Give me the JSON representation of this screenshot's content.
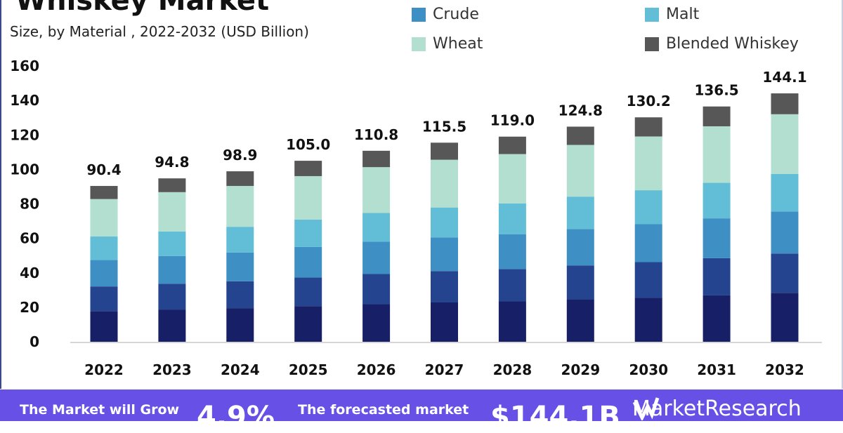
{
  "header": {
    "title": "Whiskey Market",
    "subtitle": "Size, by Material , 2022-2032 (USD Billion)"
  },
  "legend": [
    {
      "label": "Crude",
      "color": "#3d8fc4"
    },
    {
      "label": "Malt",
      "color": "#62bdd6"
    },
    {
      "label": "Wheat",
      "color": "#b2dfd0"
    },
    {
      "label": "Blended Whiskey",
      "color": "#575757"
    }
  ],
  "banner": {
    "grow_label": "The Market will Grow",
    "cagr": "4.9%",
    "forecast_label": "The forecasted market",
    "forecast_value": "$144.1B",
    "logo_text": "MarketResearch",
    "color": "#6650e6"
  },
  "chart_data": {
    "type": "bar",
    "stacked": true,
    "title": "Whiskey Market",
    "subtitle": "Size, by Material , 2022-2032 (USD Billion)",
    "xlabel": "",
    "ylabel": "",
    "ylim": [
      0,
      160
    ],
    "yticks": [
      0,
      20,
      40,
      60,
      80,
      100,
      120,
      140,
      160
    ],
    "grid": false,
    "legend_position": "top-right",
    "categories": [
      "2022",
      "2023",
      "2024",
      "2025",
      "2026",
      "2027",
      "2028",
      "2029",
      "2030",
      "2031",
      "2032"
    ],
    "totals": [
      "90.4",
      "94.8",
      "98.9",
      "105.0",
      "110.8",
      "115.5",
      "119.0",
      "124.8",
      "130.2",
      "136.5",
      "144.1"
    ],
    "series": [
      {
        "color": "#172066",
        "values": [
          17.8,
          18.7,
          19.5,
          20.7,
          21.8,
          22.8,
          23.4,
          24.6,
          25.6,
          26.9,
          28.4
        ]
      },
      {
        "color": "#24448f",
        "values": [
          14.3,
          15.0,
          15.6,
          16.6,
          17.5,
          18.2,
          18.8,
          19.7,
          20.6,
          21.6,
          22.8
        ]
      },
      {
        "name": "Crude",
        "color": "#3d8fc4",
        "values": [
          15.3,
          16.0,
          16.7,
          17.7,
          18.7,
          19.5,
          20.1,
          21.1,
          22.0,
          23.1,
          24.4
        ]
      },
      {
        "name": "Malt",
        "color": "#62bdd6",
        "values": [
          13.7,
          14.3,
          14.9,
          15.9,
          16.7,
          17.4,
          18.0,
          18.8,
          19.7,
          20.6,
          21.8
        ]
      },
      {
        "name": "Wheat",
        "color": "#b2dfd0",
        "values": [
          21.7,
          22.8,
          23.7,
          25.2,
          26.6,
          27.7,
          28.6,
          30.0,
          31.2,
          32.8,
          34.6
        ]
      },
      {
        "name": "Blended Whiskey",
        "color": "#575757",
        "values": [
          7.6,
          8.0,
          8.5,
          8.9,
          9.5,
          9.9,
          10.1,
          10.6,
          11.1,
          11.5,
          12.1
        ]
      }
    ]
  }
}
